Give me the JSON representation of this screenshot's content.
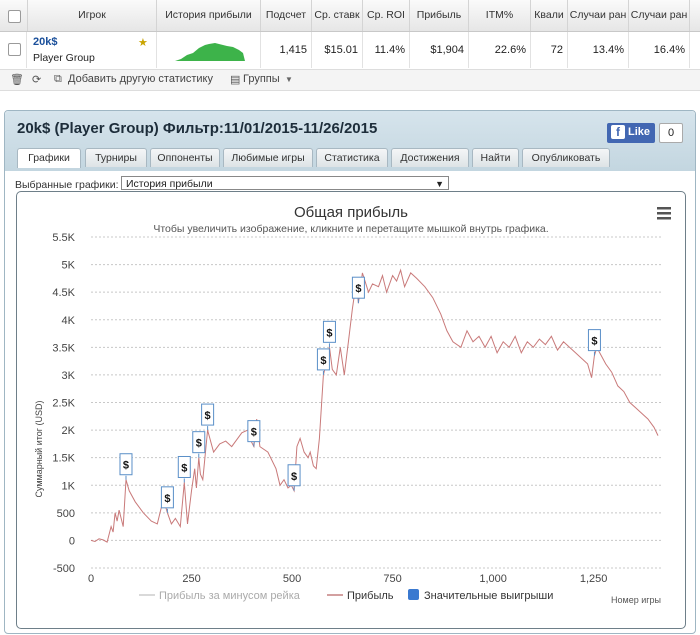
{
  "table": {
    "columns": [
      "Игрок",
      "История прибыли",
      "Подсчет",
      "Ср. ставк",
      "Ср. ROI",
      "Прибыль",
      "ITM%",
      "Квали",
      "Случаи ран",
      "Случаи ран"
    ],
    "row": {
      "player_name": "20k$",
      "player_group": "Player Group",
      "count": "1,415",
      "avg_stake": "$15.01",
      "avg_roi": "11.4%",
      "profit": "$1,904",
      "itm": "22.6%",
      "quali": "72",
      "early_1": "13.4%",
      "early_2": "16.4%"
    }
  },
  "toolbar": {
    "add_stat": "Добавить другую статистику",
    "groups": "Группы"
  },
  "panel": {
    "title": "20k$ (Player Group) Фильтр:11/01/2015-11/26/2015",
    "like_label": "Like",
    "like_count": "0",
    "tabs": [
      "Графики",
      "Турниры",
      "Оппоненты",
      "Любимые игры",
      "Статистика",
      "Достижения",
      "Найти",
      "Опубликовать"
    ],
    "selected_graphs_label": "Выбранные графики:",
    "selected_graph": "История прибыли"
  },
  "chart_data": {
    "type": "line",
    "title": "Общая прибыль",
    "subtitle": "Чтобы увеличить изображение, кликните и перетащите мышкой внутрь графика.",
    "ylabel": "Суммарный итог (USD)",
    "xlabel": "Номер игры",
    "ylim": [
      -500,
      5500
    ],
    "xlim": [
      0,
      1420
    ],
    "y_ticks": [
      "-500",
      "0",
      "500",
      "1K",
      "1.5K",
      "2K",
      "2.5K",
      "3K",
      "3.5K",
      "4K",
      "4.5K",
      "5K",
      "5.5K"
    ],
    "x_ticks": [
      "0",
      "250",
      "500",
      "750",
      "1,000",
      "1,250"
    ],
    "legend": [
      "Прибыль за минусом рейка",
      "Прибыль",
      "Значительные выигрыши"
    ],
    "series": [
      {
        "name": "Прибыль",
        "color": "#c97a7a",
        "points": [
          [
            0,
            0
          ],
          [
            10,
            -20
          ],
          [
            20,
            30
          ],
          [
            30,
            10
          ],
          [
            40,
            -30
          ],
          [
            50,
            250
          ],
          [
            55,
            150
          ],
          [
            60,
            500
          ],
          [
            65,
            350
          ],
          [
            70,
            550
          ],
          [
            80,
            250
          ],
          [
            87,
            1100
          ],
          [
            95,
            900
          ],
          [
            110,
            700
          ],
          [
            130,
            500
          ],
          [
            150,
            350
          ],
          [
            165,
            300
          ],
          [
            180,
            750
          ],
          [
            190,
            500
          ],
          [
            200,
            300
          ],
          [
            210,
            400
          ],
          [
            222,
            250
          ],
          [
            232,
            1050
          ],
          [
            240,
            300
          ],
          [
            250,
            900
          ],
          [
            258,
            1300
          ],
          [
            262,
            950
          ],
          [
            268,
            1500
          ],
          [
            272,
            1200
          ],
          [
            278,
            1100
          ],
          [
            290,
            2000
          ],
          [
            305,
            1600
          ],
          [
            320,
            1750
          ],
          [
            335,
            1800
          ],
          [
            350,
            1700
          ],
          [
            375,
            1950
          ],
          [
            390,
            2000
          ],
          [
            398,
            1800
          ],
          [
            405,
            1700
          ],
          [
            412,
            2200
          ],
          [
            420,
            1700
          ],
          [
            440,
            1600
          ],
          [
            460,
            1300
          ],
          [
            470,
            1000
          ],
          [
            480,
            1100
          ],
          [
            490,
            950
          ],
          [
            498,
            1000
          ],
          [
            505,
            900
          ],
          [
            512,
            1700
          ],
          [
            520,
            1850
          ],
          [
            530,
            1600
          ],
          [
            540,
            1500
          ],
          [
            545,
            1600
          ],
          [
            553,
            1350
          ],
          [
            560,
            1300
          ],
          [
            568,
            1850
          ],
          [
            578,
            3000
          ],
          [
            585,
            3200
          ],
          [
            593,
            3500
          ],
          [
            600,
            3100
          ],
          [
            610,
            3000
          ],
          [
            620,
            3500
          ],
          [
            630,
            3000
          ],
          [
            640,
            3600
          ],
          [
            650,
            4200
          ],
          [
            660,
            4700
          ],
          [
            665,
            4300
          ],
          [
            675,
            4850
          ],
          [
            690,
            4500
          ],
          [
            700,
            4650
          ],
          [
            715,
            4600
          ],
          [
            725,
            4800
          ],
          [
            735,
            4500
          ],
          [
            750,
            4800
          ],
          [
            760,
            4700
          ],
          [
            770,
            4900
          ],
          [
            780,
            4600
          ],
          [
            795,
            4850
          ],
          [
            810,
            4750
          ],
          [
            830,
            4600
          ],
          [
            850,
            4400
          ],
          [
            870,
            4100
          ],
          [
            885,
            3800
          ],
          [
            900,
            3600
          ],
          [
            920,
            3500
          ],
          [
            935,
            3800
          ],
          [
            950,
            3600
          ],
          [
            965,
            3700
          ],
          [
            980,
            3500
          ],
          [
            995,
            3700
          ],
          [
            1010,
            3400
          ],
          [
            1025,
            3600
          ],
          [
            1040,
            3500
          ],
          [
            1055,
            3700
          ],
          [
            1070,
            3400
          ],
          [
            1085,
            3600
          ],
          [
            1100,
            3500
          ],
          [
            1115,
            3650
          ],
          [
            1130,
            3550
          ],
          [
            1145,
            3700
          ],
          [
            1160,
            3450
          ],
          [
            1175,
            3600
          ],
          [
            1190,
            3500
          ],
          [
            1205,
            3400
          ],
          [
            1220,
            3300
          ],
          [
            1235,
            3200
          ],
          [
            1245,
            2950
          ],
          [
            1252,
            3350
          ],
          [
            1258,
            3500
          ],
          [
            1265,
            3400
          ],
          [
            1280,
            3200
          ],
          [
            1295,
            3050
          ],
          [
            1310,
            2800
          ],
          [
            1325,
            2700
          ],
          [
            1340,
            2500
          ],
          [
            1355,
            2400
          ],
          [
            1370,
            2300
          ],
          [
            1385,
            2200
          ],
          [
            1400,
            2050
          ],
          [
            1410,
            1900
          ]
        ]
      }
    ],
    "markers": {
      "label": "$",
      "x": [
        87,
        190,
        232,
        268,
        290,
        405,
        505,
        578,
        593,
        665,
        1252
      ]
    }
  }
}
